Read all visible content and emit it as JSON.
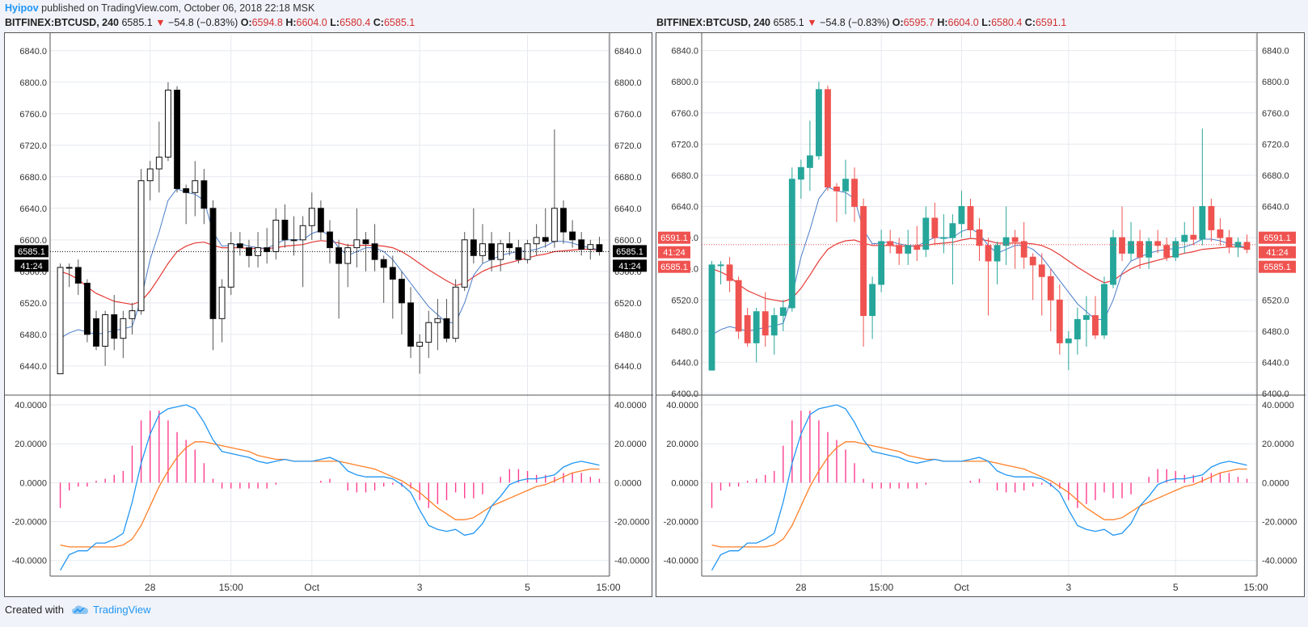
{
  "header": {
    "author": "Hyipov",
    "published_text": "published on TradingView.com, October 06, 2018 22:18 MSK"
  },
  "footer": {
    "created_with": "Created with",
    "brand": "TradingView"
  },
  "left_chart": {
    "symbol": "BITFINEX:BTCUSD, 240",
    "last": "6585.1",
    "arrow": "▼",
    "change": "−54.8 (−0.83%)",
    "o_label": "O:",
    "o_value": "6594.8",
    "h_label": "H:",
    "h_value": "6604.0",
    "l_label": "L:",
    "l_value": "6580.4",
    "c_label": "C:",
    "c_value": "6585.1",
    "price_tag": "6585.1",
    "countdown": "41:24"
  },
  "right_chart": {
    "symbol": "BITFINEX:BTCUSD, 240",
    "last": "6585.1",
    "arrow": "▼",
    "change": "−54.8 (−0.83%)",
    "o_label": "O:",
    "o_value": "6595.7",
    "h_label": "H:",
    "h_value": "6604.0",
    "l_label": "L:",
    "l_value": "6580.4",
    "c_label": "C:",
    "c_value": "6591.1",
    "price_tag_top": "6591.1",
    "countdown": "41:24",
    "price_tag_bottom": "6585.1"
  },
  "chart_data": [
    {
      "type": "candlestick",
      "id": "left",
      "style": "hollow-black",
      "up_color": "#ffffff",
      "down_color": "#000000",
      "ma_fast_color": "#4a7cc9",
      "ma_slow_color": "#e53935",
      "x_tick_labels": [
        {
          "label": "28",
          "index": 10
        },
        {
          "label": "15:00",
          "index": 19
        },
        {
          "label": "Oct",
          "index": 28
        },
        {
          "label": "3",
          "index": 40
        },
        {
          "label": "5",
          "index": 52
        },
        {
          "label": "15:00",
          "index": 61
        }
      ],
      "price_axis": {
        "ticks": [
          6440,
          6480,
          6520,
          6560,
          6600,
          6640,
          6680,
          6720,
          6760,
          6800,
          6840
        ],
        "tick_labels": [
          "6440.0",
          "6480.0",
          "6520.0",
          "6560.0",
          "6600.0",
          "6640.0",
          "6680.0",
          "6720.0",
          "6760.0",
          "6800.0",
          "6840.0"
        ],
        "range": [
          6405,
          6850
        ]
      },
      "candles": [
        [
          6430,
          6570,
          6430,
          6565
        ],
        [
          6565,
          6570,
          6540,
          6565
        ],
        [
          6565,
          6575,
          6530,
          6545
        ],
        [
          6545,
          6550,
          6470,
          6480
        ],
        [
          6500,
          6510,
          6460,
          6465
        ],
        [
          6465,
          6510,
          6440,
          6505
        ],
        [
          6505,
          6530,
          6460,
          6475
        ],
        [
          6475,
          6510,
          6450,
          6500
        ],
        [
          6500,
          6520,
          6480,
          6510
        ],
        [
          6510,
          6690,
          6505,
          6675
        ],
        [
          6675,
          6700,
          6650,
          6690
        ],
        [
          6690,
          6750,
          6660,
          6705
        ],
        [
          6705,
          6800,
          6700,
          6790
        ],
        [
          6790,
          6795,
          6660,
          6665
        ],
        [
          6665,
          6670,
          6620,
          6660
        ],
        [
          6660,
          6700,
          6630,
          6675
        ],
        [
          6675,
          6690,
          6620,
          6640
        ],
        [
          6640,
          6650,
          6460,
          6500
        ],
        [
          6500,
          6550,
          6470,
          6540
        ],
        [
          6540,
          6610,
          6530,
          6595
        ],
        [
          6595,
          6610,
          6580,
          6590
        ],
        [
          6590,
          6600,
          6565,
          6580
        ],
        [
          6580,
          6610,
          6565,
          6590
        ],
        [
          6590,
          6615,
          6570,
          6585
        ],
        [
          6585,
          6640,
          6575,
          6625
        ],
        [
          6625,
          6645,
          6590,
          6600
        ],
        [
          6600,
          6630,
          6580,
          6600
        ],
        [
          6600,
          6630,
          6540,
          6618
        ],
        [
          6618,
          6660,
          6600,
          6640
        ],
        [
          6640,
          6650,
          6600,
          6610
        ],
        [
          6610,
          6625,
          6570,
          6590
        ],
        [
          6590,
          6600,
          6500,
          6570
        ],
        [
          6570,
          6595,
          6540,
          6590
        ],
        [
          6590,
          6640,
          6565,
          6600
        ],
        [
          6600,
          6610,
          6560,
          6595
        ],
        [
          6595,
          6620,
          6560,
          6575
        ],
        [
          6575,
          6580,
          6520,
          6565
        ],
        [
          6565,
          6580,
          6500,
          6550
        ],
        [
          6550,
          6560,
          6480,
          6520
        ],
        [
          6520,
          6540,
          6450,
          6465
        ],
        [
          6465,
          6480,
          6430,
          6470
        ],
        [
          6470,
          6510,
          6450,
          6495
        ],
        [
          6495,
          6525,
          6460,
          6500
        ],
        [
          6500,
          6525,
          6470,
          6475
        ],
        [
          6475,
          6550,
          6470,
          6540
        ],
        [
          6540,
          6610,
          6535,
          6600
        ],
        [
          6600,
          6640,
          6570,
          6580
        ],
        [
          6580,
          6620,
          6570,
          6595
        ],
        [
          6595,
          6610,
          6560,
          6575
        ],
        [
          6575,
          6600,
          6560,
          6595
        ],
        [
          6595,
          6610,
          6580,
          6590
        ],
        [
          6590,
          6600,
          6570,
          6575
        ],
        [
          6575,
          6600,
          6570,
          6595
        ],
        [
          6595,
          6620,
          6580,
          6603
        ],
        [
          6603,
          6640,
          6590,
          6598
        ],
        [
          6598,
          6740,
          6590,
          6640
        ],
        [
          6640,
          6650,
          6595,
          6610
        ],
        [
          6610,
          6625,
          6590,
          6600
        ],
        [
          6600,
          6610,
          6580,
          6588
        ],
        [
          6588,
          6600,
          6575,
          6594
        ],
        [
          6594,
          6604,
          6580,
          6585
        ]
      ],
      "ma_fast": [
        6475,
        6482,
        6486,
        6483,
        6480,
        6482,
        6485,
        6487,
        6490,
        6525,
        6575,
        6610,
        6650,
        6665,
        6660,
        6658,
        6650,
        6610,
        6592,
        6593,
        6595,
        6592,
        6590,
        6589,
        6595,
        6600,
        6600,
        6600,
        6608,
        6612,
        6605,
        6590,
        6580,
        6585,
        6590,
        6590,
        6585,
        6575,
        6560,
        6545,
        6530,
        6515,
        6505,
        6495,
        6495,
        6520,
        6555,
        6570,
        6575,
        6580,
        6583,
        6585,
        6586,
        6588,
        6592,
        6598,
        6598,
        6596,
        6592,
        6590,
        6587
      ],
      "ma_slow": [
        6560,
        6556,
        6550,
        6540,
        6532,
        6527,
        6522,
        6520,
        6518,
        6522,
        6535,
        6552,
        6570,
        6585,
        6592,
        6596,
        6597,
        6593,
        6590,
        6590,
        6590,
        6589,
        6589,
        6589,
        6590,
        6592,
        6593,
        6594,
        6597,
        6599,
        6598,
        6596,
        6593,
        6593,
        6593,
        6593,
        6592,
        6590,
        6585,
        6578,
        6570,
        6562,
        6555,
        6548,
        6542,
        6545,
        6553,
        6560,
        6565,
        6568,
        6571,
        6574,
        6577,
        6580,
        6582,
        6585,
        6586,
        6587,
        6588,
        6588,
        6587
      ],
      "oscillator": {
        "axis_ticks": [
          -40,
          -20,
          0,
          20,
          40
        ],
        "tick_labels": [
          "-40.0000",
          "-20.0000",
          "0.0000",
          "20.0000",
          "40.0000"
        ],
        "range": [
          -48,
          45
        ],
        "fast_color": "#2196f3",
        "slow_color": "#ff7f27",
        "hist_color": "#ff3d8f",
        "fast": [
          -45,
          -37,
          -35,
          -35,
          -31,
          -31,
          -29,
          -26,
          -10,
          10,
          25,
          35,
          38,
          39,
          40,
          38,
          31,
          22,
          16,
          15,
          14,
          13,
          11,
          10,
          11,
          12,
          11,
          11,
          11,
          12,
          13,
          11,
          6,
          4,
          3,
          3,
          3,
          2,
          -1,
          -5,
          -14,
          -22,
          -24,
          -25,
          -24,
          -27,
          -26,
          -21,
          -12,
          -7,
          -1,
          1,
          2,
          2,
          3,
          4,
          8,
          10,
          11,
          10,
          9
        ],
        "slow": [
          -32,
          -33,
          -33,
          -33,
          -33,
          -33,
          -33,
          -32,
          -29,
          -22,
          -12,
          -2,
          6,
          13,
          18,
          21,
          21,
          20,
          19,
          18,
          17,
          16,
          14,
          13,
          12,
          12,
          11,
          11,
          11,
          11,
          11,
          11,
          10,
          9,
          8,
          7,
          5,
          3,
          1,
          -2,
          -5,
          -9,
          -13,
          -16,
          -19,
          -19,
          -18,
          -15,
          -12,
          -10,
          -8,
          -6,
          -4,
          -2,
          -1,
          1,
          3,
          5,
          6,
          7,
          7
        ],
        "hist": [
          -13,
          -4,
          -2,
          -2,
          1,
          2,
          4,
          6,
          19,
          32,
          37,
          37,
          32,
          26,
          22,
          17,
          10,
          2,
          -3,
          -3,
          -3,
          -3,
          -3,
          -3,
          -1,
          0,
          0,
          0,
          0,
          1,
          2,
          0,
          -4,
          -5,
          -5,
          -4,
          -2,
          -1,
          -2,
          -3,
          -9,
          -13,
          -11,
          -9,
          -5,
          -8,
          -8,
          -6,
          0,
          3,
          7,
          7,
          6,
          4,
          4,
          3,
          5,
          5,
          5,
          3,
          2
        ]
      }
    },
    {
      "type": "candlestick",
      "id": "right",
      "style": "colored",
      "up_color": "#26a69a",
      "down_color": "#ef5350",
      "ma_fast_color": "#4a7cc9",
      "ma_slow_color": "#e53935",
      "x_tick_labels": [
        {
          "label": "28",
          "index": 10
        },
        {
          "label": "15:00",
          "index": 19
        },
        {
          "label": "Oct",
          "index": 28
        },
        {
          "label": "3",
          "index": 40
        },
        {
          "label": "5",
          "index": 52
        },
        {
          "label": "15:00",
          "index": 61
        }
      ],
      "price_axis": {
        "ticks": [
          6400,
          6440,
          6480,
          6520,
          6560,
          6600,
          6640,
          6680,
          6720,
          6760,
          6800,
          6840
        ],
        "tick_labels": [
          "6400.0",
          "6440.0",
          "6480.0",
          "6520.0",
          "6560.0",
          "6600.0",
          "6640.0",
          "6680.0",
          "6720.0",
          "6760.0",
          "6800.0",
          "6840.0"
        ],
        "range": [
          6400,
          6850
        ]
      }
    }
  ]
}
